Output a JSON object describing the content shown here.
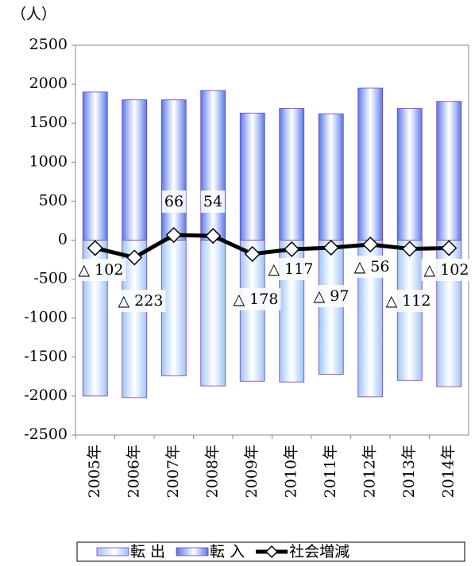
{
  "chart_data": {
    "type": "bar_line",
    "y_label": "（人）",
    "categories": [
      "2005年",
      "2006年",
      "2007年",
      "2008年",
      "2009年",
      "2010年",
      "2011年",
      "2012年",
      "2013年",
      "2014年"
    ],
    "series": [
      {
        "name": "転 出",
        "type": "bar",
        "color": "#9cc3f5",
        "values": [
          -2000,
          -2020,
          -1740,
          -1870,
          -1810,
          -1820,
          -1720,
          -2010,
          -1800,
          -1880
        ]
      },
      {
        "name": "転 入",
        "type": "bar",
        "color": "#5577e8",
        "values": [
          1900,
          1800,
          1800,
          1920,
          1630,
          1690,
          1620,
          1950,
          1690,
          1780
        ]
      },
      {
        "name": "社会増減",
        "type": "line",
        "color": "#000000",
        "values": [
          -102,
          -223,
          66,
          54,
          -178,
          -117,
          -97,
          -56,
          -112,
          -102
        ],
        "value_labels": [
          "△ 102",
          "△ 223",
          "66",
          "54",
          "△ 178",
          "△ 117",
          "△ 97",
          "△ 56",
          "△ 112",
          "△ 102"
        ]
      }
    ],
    "ylim": [
      -2500,
      2500
    ],
    "yticks": [
      -2500,
      -2000,
      -1500,
      -1000,
      -500,
      0,
      500,
      1000,
      1500,
      2000,
      2500
    ],
    "grid": false,
    "legend": "bottom"
  }
}
